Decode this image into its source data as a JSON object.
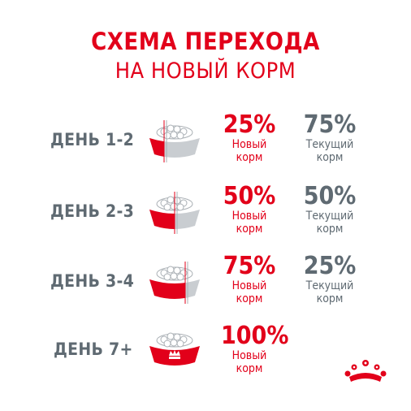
{
  "header": {
    "title_line1": "СХЕМА ПЕРЕХОДА",
    "title_line2": "НА НОВЫЙ  КОРМ"
  },
  "rows": [
    {
      "day": "ДЕНЬ 1-2",
      "new_pct": "25%",
      "new_label_1": "Новый",
      "new_label_2": "корм",
      "cur_pct": "75%",
      "cur_label_1": "Текущий",
      "cur_label_2": "корм",
      "new_fraction": 0.25
    },
    {
      "day": "ДЕНЬ 2-3",
      "new_pct": "50%",
      "new_label_1": "Новый",
      "new_label_2": "корм",
      "cur_pct": "50%",
      "cur_label_1": "Текущий",
      "cur_label_2": "корм",
      "new_fraction": 0.5
    },
    {
      "day": "ДЕНЬ 3-4",
      "new_pct": "75%",
      "new_label_1": "Новый",
      "new_label_2": "корм",
      "cur_pct": "25%",
      "cur_label_1": "Текущий",
      "cur_label_2": "корм",
      "new_fraction": 0.75
    },
    {
      "day": "ДЕНЬ 7+",
      "new_pct": "100%",
      "new_label_1": "Новый",
      "new_label_2": "корм",
      "new_fraction": 1.0
    }
  ],
  "colors": {
    "red": "#e2001a",
    "grey": "#5f6a72",
    "bowl_grey": "#c9cdd1"
  },
  "icons": {
    "bowl": "food-bowl-icon",
    "logo": "crown-logo-icon"
  }
}
